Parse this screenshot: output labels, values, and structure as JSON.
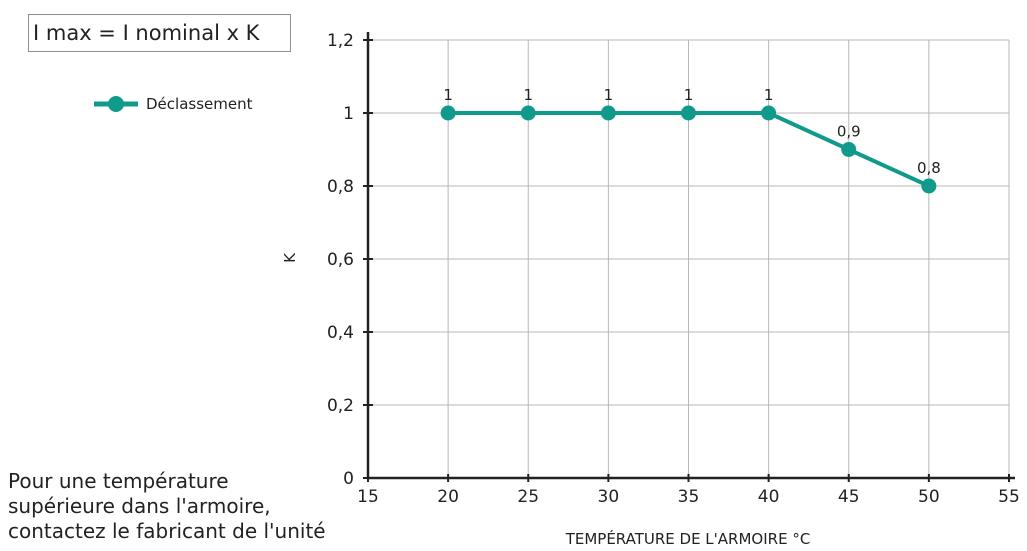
{
  "formula": "I max = I nominal x K",
  "note_lines": [
    "Pour une température",
    "supérieure dans l'armoire,",
    "contactez le fabricant de l'unité"
  ],
  "colors": {
    "series": "#0f9a8c",
    "grid": "#b8b8b8",
    "axis": "#222222"
  },
  "chart_data": {
    "type": "line",
    "xlabel": "TEMPÉRATURE DE L'ARMOIRE °C",
    "ylabel": "K",
    "xlim": [
      15,
      55
    ],
    "ylim": [
      0,
      1.2
    ],
    "x_ticks": [
      15,
      20,
      25,
      30,
      35,
      40,
      45,
      50,
      55
    ],
    "x_tick_labels": [
      "15",
      "20",
      "25",
      "30",
      "35",
      "40",
      "45",
      "50",
      "55"
    ],
    "y_ticks": [
      0,
      0.2,
      0.4,
      0.6,
      0.8,
      1.0,
      1.2
    ],
    "y_tick_labels": [
      "0",
      "0,2",
      "0,4",
      "0,6",
      "0,8",
      "1",
      "1,2"
    ],
    "grid": true,
    "legend_position": "top-left",
    "series": [
      {
        "name": "Déclassement",
        "x": [
          20,
          25,
          30,
          35,
          40,
          45,
          50
        ],
        "y": [
          1,
          1,
          1,
          1,
          1,
          0.9,
          0.8
        ],
        "data_labels": [
          "1",
          "1",
          "1",
          "1",
          "1",
          "0,9",
          "0,8"
        ]
      }
    ]
  }
}
